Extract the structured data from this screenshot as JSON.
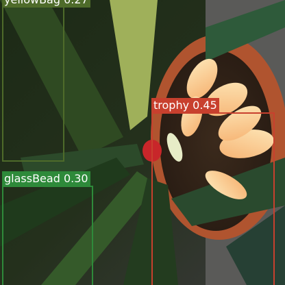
{
  "image": {
    "description": ""
  },
  "detections": [
    {
      "id": "yellowbag",
      "label": "yellowBag 0.27",
      "color": "#4e6b2a"
    },
    {
      "id": "trophy",
      "label": "trophy 0.45",
      "color": "#c8402e"
    },
    {
      "id": "glassbead",
      "label": "glassBead 0.30",
      "color": "#2e8a3a"
    }
  ]
}
